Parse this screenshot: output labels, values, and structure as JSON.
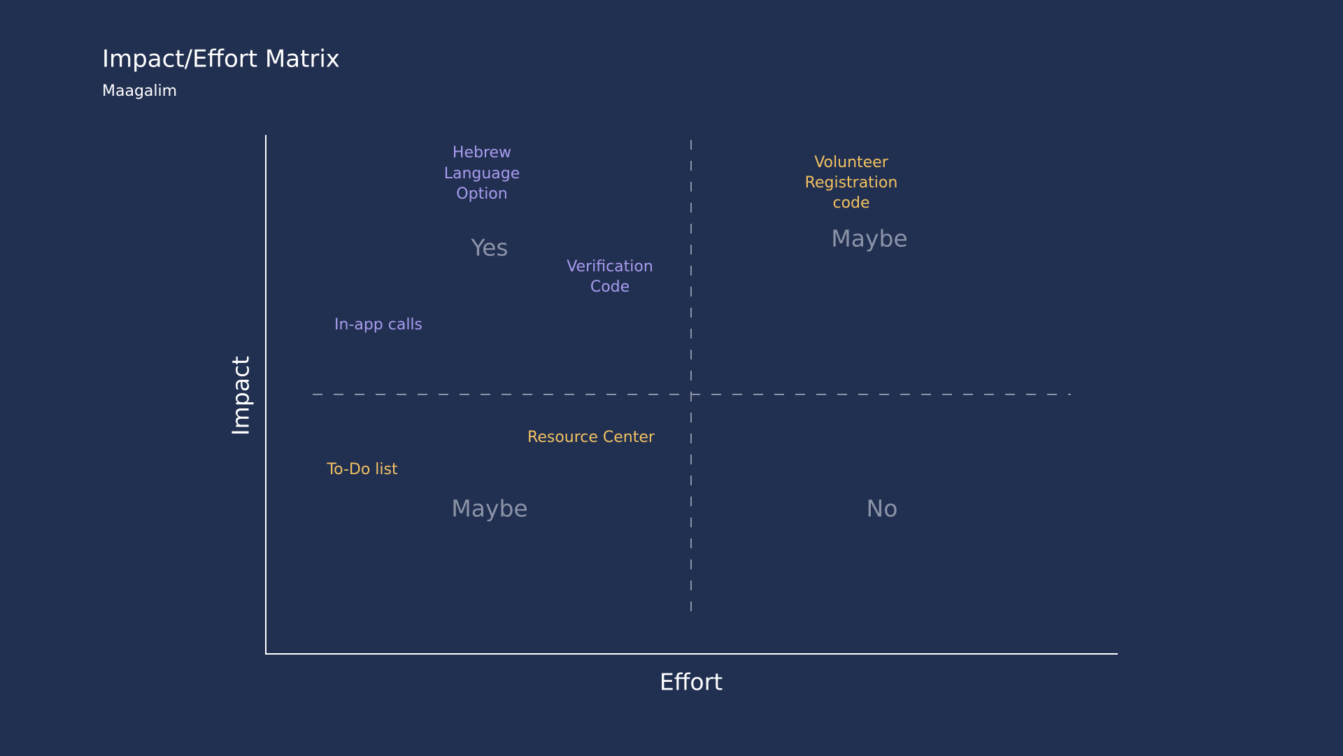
{
  "header": {
    "title": "Impact/Effort Matrix",
    "subtitle": "Maagalim"
  },
  "axes": {
    "x_label": "Effort",
    "y_label": "Impact"
  },
  "quadrants": {
    "top_left": "Yes",
    "top_right": "Maybe",
    "bottom_left": "Maybe",
    "bottom_right": "No"
  },
  "items": [
    {
      "lines": [
        "Hebrew",
        "Language",
        "Option"
      ]
    },
    {
      "lines": [
        "Verification",
        "Code"
      ]
    },
    {
      "lines": [
        "In-app calls"
      ]
    },
    {
      "lines": [
        "Volunteer",
        "Registration",
        "code"
      ]
    },
    {
      "lines": [
        "Resource Center"
      ]
    },
    {
      "lines": [
        "To-Do list"
      ]
    }
  ]
}
